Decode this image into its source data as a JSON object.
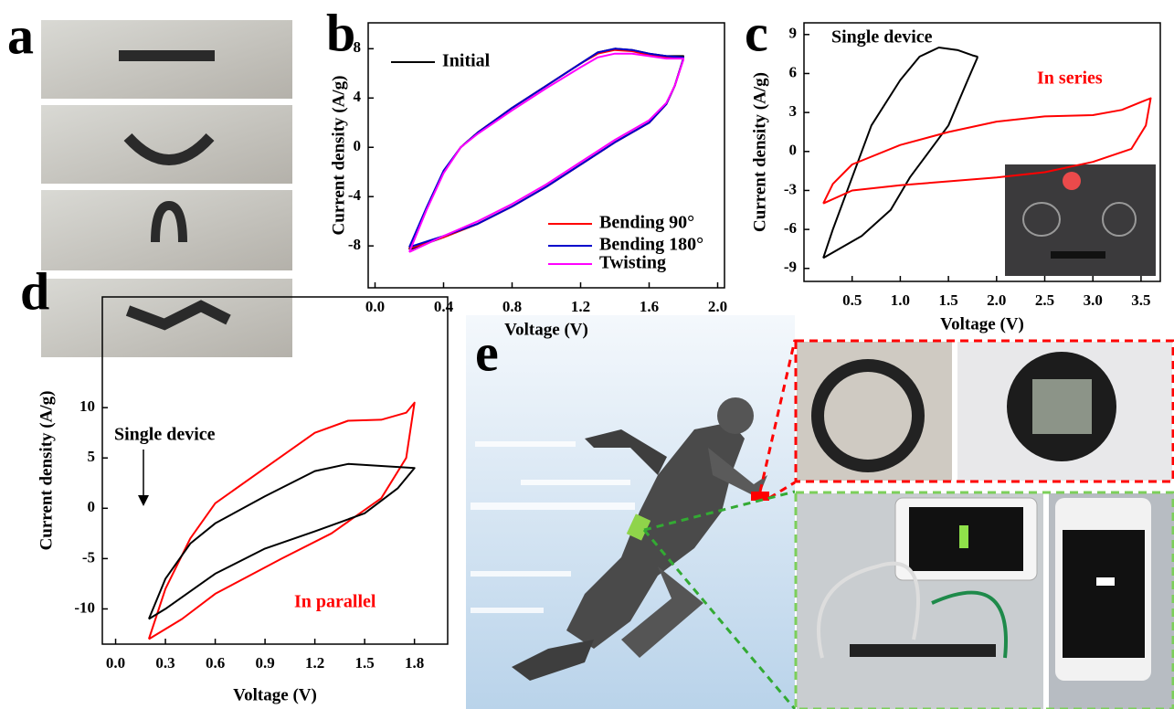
{
  "panel_labels": [
    "a",
    "b",
    "c",
    "d",
    "e"
  ],
  "chart_data": [
    {
      "type": "line",
      "xlabel": "Voltage (V)",
      "ylabel": "Current density (A/g)",
      "xlim": [
        -0.04,
        2.04
      ],
      "ylim": [
        -11.4,
        10.1
      ],
      "xticks": [
        {
          "value": 0,
          "label": "0.0"
        },
        0.4,
        0.8,
        1.2,
        1.6,
        {
          "value": 2,
          "label": "2.0"
        }
      ],
      "yticks": [
        -8,
        -4,
        0,
        4,
        8
      ],
      "series": [
        {
          "name": "Initial",
          "color": "#000000",
          "x": [
            0.2,
            0.3,
            0.4,
            0.5,
            0.6,
            0.8,
            1.0,
            1.2,
            1.3,
            1.4,
            1.5,
            1.6,
            1.7,
            1.8,
            1.8,
            1.75,
            1.7,
            1.6,
            1.4,
            1.2,
            1.0,
            0.8,
            0.6,
            0.4,
            0.2
          ],
          "values": [
            -8.3,
            -5,
            -2,
            0,
            1.2,
            3.2,
            5,
            6.8,
            7.7,
            8,
            7.9,
            7.6,
            7.4,
            7.4,
            7.2,
            5,
            3.5,
            2,
            0.4,
            -1.4,
            -3.2,
            -4.8,
            -6.2,
            -7.3,
            -8.3
          ]
        },
        {
          "name": "Bending 90°",
          "color": "#ff0000",
          "x": [
            0.2,
            0.3,
            0.4,
            0.5,
            0.6,
            0.8,
            1.0,
            1.2,
            1.3,
            1.4,
            1.5,
            1.6,
            1.7,
            1.8,
            1.8,
            1.75,
            1.7,
            1.6,
            1.4,
            1.2,
            1.0,
            0.8,
            0.6,
            0.4,
            0.2
          ],
          "values": [
            -8.2,
            -5,
            -2,
            0,
            1.2,
            3.2,
            5,
            6.8,
            7.6,
            7.9,
            7.8,
            7.5,
            7.3,
            7.3,
            7.2,
            5,
            3.5,
            2,
            0.4,
            -1.4,
            -3.2,
            -4.8,
            -6.2,
            -7.3,
            -8.2
          ]
        },
        {
          "name": "Bending 180°",
          "color": "#0000cc",
          "x": [
            0.2,
            0.3,
            0.4,
            0.5,
            0.6,
            0.8,
            1.0,
            1.2,
            1.3,
            1.4,
            1.5,
            1.6,
            1.7,
            1.8,
            1.8,
            1.75,
            1.7,
            1.6,
            1.4,
            1.2,
            1.0,
            0.8,
            0.6,
            0.4,
            0.2
          ],
          "values": [
            -8.1,
            -4.9,
            -1.9,
            0,
            1.2,
            3.2,
            5,
            6.8,
            7.7,
            8,
            7.9,
            7.6,
            7.4,
            7.3,
            7.2,
            5,
            3.5,
            2,
            0.4,
            -1.4,
            -3.2,
            -4.8,
            -6.2,
            -7.2,
            -8.1
          ]
        },
        {
          "name": "Twisting",
          "color": "#ff00ff",
          "x": [
            0.2,
            0.3,
            0.4,
            0.5,
            0.6,
            0.8,
            1.0,
            1.2,
            1.3,
            1.4,
            1.5,
            1.6,
            1.7,
            1.8,
            1.8,
            1.75,
            1.7,
            1.6,
            1.4,
            1.2,
            1.0,
            0.8,
            0.6,
            0.4,
            0.2
          ],
          "values": [
            -8.5,
            -5.1,
            -2.1,
            0,
            1.1,
            3,
            4.8,
            6.5,
            7.3,
            7.6,
            7.6,
            7.4,
            7.2,
            7.2,
            7.1,
            5,
            3.6,
            2.2,
            0.6,
            -1.2,
            -3,
            -4.6,
            -6,
            -7.2,
            -8.5
          ]
        }
      ]
    },
    {
      "type": "line",
      "xlabel": "Voltage (V)",
      "ylabel": "Current density (A/g)",
      "xlim": [
        0,
        3.7
      ],
      "ylim": [
        -10,
        9.9
      ],
      "xticks": [
        0.5,
        {
          "value": 1,
          "label": "1.0"
        },
        1.5,
        {
          "value": 2,
          "label": "2.0"
        },
        2.5,
        {
          "value": 3,
          "label": "3.0"
        },
        3.5
      ],
      "yticks": [
        -9,
        -6,
        -3,
        0,
        3,
        6,
        9
      ],
      "annotations": [
        {
          "text": "Single device",
          "color": "#000000"
        },
        {
          "text": "In series",
          "color": "#ff0000"
        }
      ],
      "series": [
        {
          "color": "#000000",
          "x": [
            0.2,
            0.3,
            0.5,
            0.7,
            1.0,
            1.2,
            1.4,
            1.6,
            1.75,
            1.8,
            1.8,
            1.7,
            1.5,
            1.3,
            1.1,
            0.9,
            0.6,
            0.2
          ],
          "values": [
            -8.2,
            -6,
            -2,
            2,
            5.5,
            7.3,
            8,
            7.8,
            7.4,
            7.3,
            7.2,
            5.5,
            2,
            0,
            -2,
            -4.5,
            -6.5,
            -8.2
          ]
        },
        {
          "color": "#ff0000",
          "x": [
            0.2,
            0.3,
            0.5,
            1.0,
            1.5,
            2.0,
            2.5,
            3.0,
            3.3,
            3.5,
            3.6,
            3.55,
            3.4,
            3.0,
            2.5,
            2.0,
            1.5,
            1.0,
            0.5,
            0.2
          ],
          "values": [
            -4,
            -2.5,
            -1,
            0.5,
            1.5,
            2.3,
            2.7,
            2.8,
            3.2,
            3.8,
            4.1,
            2,
            0.2,
            -0.8,
            -1.6,
            -2,
            -2.3,
            -2.6,
            -3,
            -4
          ]
        }
      ]
    },
    {
      "type": "line",
      "xlabel": "Voltage (V)",
      "ylabel": "Current density (A/g)",
      "xlim": [
        -0.08,
        2.0
      ],
      "ylim": [
        -13.5,
        21
      ],
      "xticks": [
        {
          "value": 0,
          "label": "0.0"
        },
        0.3,
        0.6,
        0.9,
        1.2,
        1.5,
        1.8
      ],
      "yticks": [
        -10,
        -5,
        0,
        5,
        10
      ],
      "annotations": [
        {
          "text": "Single device",
          "color": "#000000"
        },
        {
          "text": "In parallel",
          "color": "#ff0000"
        }
      ],
      "series": [
        {
          "color": "#ff0000",
          "x": [
            0.2,
            0.3,
            0.45,
            0.6,
            0.9,
            1.2,
            1.4,
            1.6,
            1.75,
            1.8,
            1.75,
            1.6,
            1.3,
            1.0,
            0.6,
            0.4,
            0.2
          ],
          "values": [
            -13,
            -8,
            -3,
            0.5,
            4,
            7.5,
            8.7,
            8.8,
            9.5,
            10.5,
            5,
            1,
            -2.5,
            -5,
            -8.5,
            -11,
            -13
          ]
        },
        {
          "color": "#000000",
          "x": [
            0.2,
            0.3,
            0.45,
            0.6,
            0.9,
            1.2,
            1.4,
            1.6,
            1.8,
            1.7,
            1.5,
            1.2,
            0.9,
            0.6,
            0.3,
            0.2
          ],
          "values": [
            -11,
            -7,
            -3.5,
            -1.5,
            1.2,
            3.7,
            4.4,
            4.2,
            4,
            2,
            -0.5,
            -2.3,
            -4,
            -6.5,
            -10,
            -11
          ]
        }
      ]
    }
  ]
}
